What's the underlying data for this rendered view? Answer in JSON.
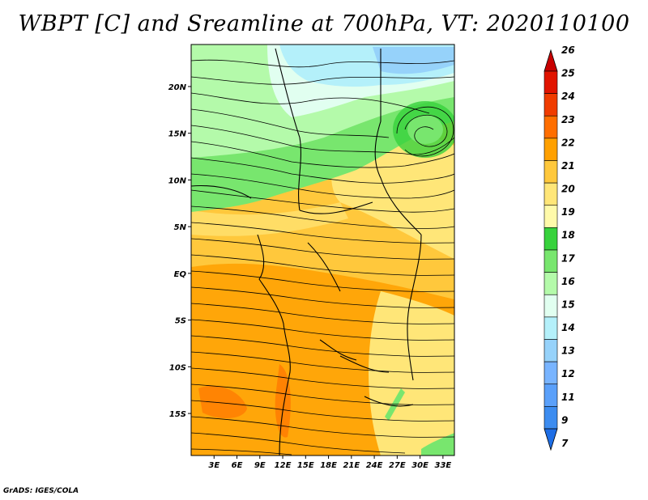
{
  "title": "WBPT [C] and Sreamline at 700hPa, VT: 2020110100",
  "credit": "GrADS: IGES/COLA",
  "map": {
    "lat_ticks": [
      "20N",
      "15N",
      "10N",
      "5N",
      "EQ",
      "5S",
      "10S",
      "15S"
    ],
    "lon_ticks": [
      "3E",
      "6E",
      "9E",
      "12E",
      "15E",
      "18E",
      "21E",
      "24E",
      "27E",
      "30E",
      "33E"
    ],
    "lat_values": [
      20,
      15,
      10,
      5,
      0,
      -5,
      -10,
      -15
    ],
    "lon_values": [
      3,
      6,
      9,
      12,
      15,
      18,
      21,
      24,
      27,
      30,
      33
    ],
    "lat_range": [
      -19.5,
      24.5
    ],
    "lon_range": [
      0,
      34.5
    ]
  },
  "colorbar": {
    "levels": [
      "7",
      "9",
      "11",
      "12",
      "13",
      "14",
      "15",
      "16",
      "17",
      "18",
      "19",
      "20",
      "21",
      "22",
      "23",
      "24",
      "25",
      "26"
    ],
    "colors": [
      "#1e6ee6",
      "#3c8cf0",
      "#5aa0fa",
      "#78b4ff",
      "#96d2fa",
      "#b4f0fa",
      "#e1fff0",
      "#b4faaa",
      "#78e66e",
      "#37d23c",
      "#fffaaa",
      "#ffe678",
      "#ffc83c",
      "#ffa000",
      "#ff6e00",
      "#f03c00",
      "#e11400",
      "#c80000"
    ]
  }
}
